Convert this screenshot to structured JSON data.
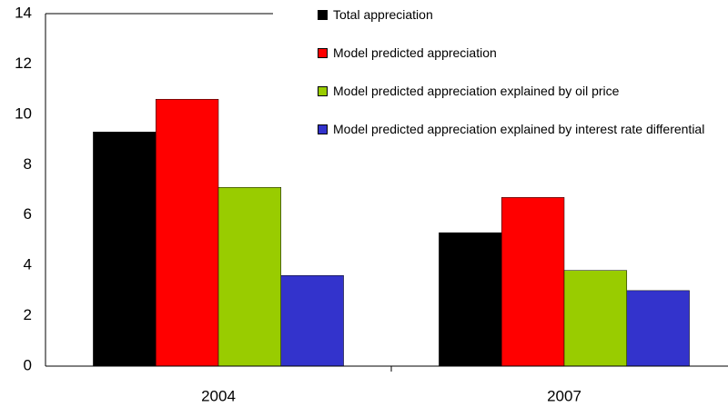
{
  "chart_data": {
    "type": "bar",
    "categories": [
      "2004",
      "2007"
    ],
    "series": [
      {
        "name": "Total appreciation",
        "color": "#000000",
        "values": [
          9.3,
          5.3
        ]
      },
      {
        "name": "Model predicted appreciation",
        "color": "#ff0000",
        "values": [
          10.6,
          6.7
        ]
      },
      {
        "name": "Model predicted appreciation explained by oil price",
        "color": "#99cc00",
        "values": [
          7.1,
          3.8
        ]
      },
      {
        "name": "Model predicted appreciation explained by interest rate differential",
        "color": "#3333cc",
        "values": [
          3.6,
          3.0
        ]
      }
    ],
    "ylim": [
      0,
      14
    ],
    "yticks": [
      0,
      2,
      4,
      6,
      8,
      10,
      12,
      14
    ],
    "grid": false,
    "legend": "top-right"
  }
}
